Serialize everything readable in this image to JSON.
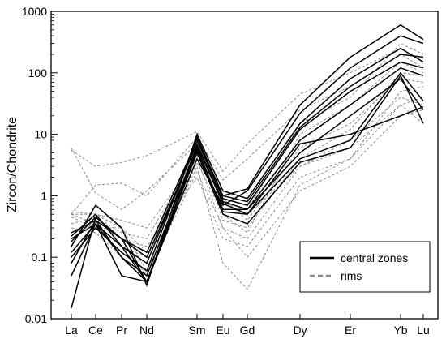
{
  "chart_data": {
    "type": "line",
    "title": "",
    "xlabel": "",
    "ylabel": "Zircon/Chondrite",
    "yscale": "log",
    "ylim": [
      0.01,
      1000
    ],
    "yticks": [
      "0.01",
      "0.1",
      "1",
      "10",
      "100",
      "1000"
    ],
    "categories": [
      "La",
      "Ce",
      "Pr",
      "Nd",
      "Sm",
      "Eu",
      "Gd",
      "Dy",
      "Er",
      "Yb",
      "Lu"
    ],
    "grid": false,
    "legend_position": "bottom-right",
    "legend": [
      {
        "label": "central zones",
        "style": "solid",
        "color": "#000000"
      },
      {
        "label": "rims",
        "style": "dashed",
        "color": "#8a8a8a"
      }
    ],
    "series": [
      {
        "group": "central zones",
        "values": [
          0.015,
          0.45,
          0.2,
          0.04,
          5,
          0.5,
          0.35,
          3.5,
          6,
          90,
          15
        ]
      },
      {
        "group": "central zones",
        "values": [
          0.22,
          0.5,
          0.15,
          0.04,
          6,
          0.55,
          0.5,
          4,
          8,
          100,
          35
        ]
      },
      {
        "group": "central zones",
        "values": [
          0.25,
          0.4,
          0.2,
          0.1,
          7,
          0.8,
          0.6,
          8,
          30,
          120,
          90
        ]
      },
      {
        "group": "central zones",
        "values": [
          0.2,
          0.35,
          0.15,
          0.08,
          8,
          0.9,
          0.7,
          12,
          50,
          150,
          120
        ]
      },
      {
        "group": "central zones",
        "values": [
          0.1,
          0.3,
          0.12,
          0.06,
          9,
          1,
          0.8,
          13,
          60,
          200,
          180
        ]
      },
      {
        "group": "central zones",
        "values": [
          0.15,
          0.7,
          0.3,
          0.035,
          10,
          1.2,
          0.9,
          15,
          80,
          250,
          150
        ]
      },
      {
        "group": "central zones",
        "values": [
          0.08,
          0.4,
          0.1,
          0.04,
          5.5,
          0.6,
          0.6,
          5,
          20,
          80,
          25
        ]
      },
      {
        "group": "central zones",
        "values": [
          0.05,
          0.35,
          0.05,
          0.04,
          4,
          0.7,
          1.2,
          22,
          120,
          400,
          300
        ]
      },
      {
        "group": "central zones",
        "values": [
          0.18,
          0.45,
          0.2,
          0.12,
          8,
          1,
          1.3,
          30,
          180,
          600,
          350
        ]
      },
      {
        "group": "central zones",
        "values": [
          0.12,
          0.35,
          0.1,
          0.05,
          6.5,
          0.75,
          0.5,
          7,
          10,
          20,
          28
        ]
      },
      {
        "group": "rims",
        "values": [
          6,
          1.1,
          0.6,
          1.2,
          7,
          0.8,
          0.5,
          3,
          6,
          30,
          15
        ]
      },
      {
        "group": "rims",
        "values": [
          5.5,
          3,
          3.5,
          4.5,
          11,
          2.5,
          7,
          45,
          100,
          250,
          150
        ]
      },
      {
        "group": "rims",
        "values": [
          0.5,
          1.5,
          1.6,
          1,
          9,
          1.8,
          4,
          25,
          60,
          200,
          120
        ]
      },
      {
        "group": "rims",
        "values": [
          0.55,
          0.5,
          0.4,
          0.3,
          4,
          0.3,
          0.2,
          3,
          8,
          40,
          30
        ]
      },
      {
        "group": "rims",
        "values": [
          0.5,
          0.35,
          0.2,
          0.15,
          2,
          0.2,
          0.15,
          2,
          4,
          30,
          40
        ]
      },
      {
        "group": "rims",
        "values": [
          0.45,
          0.3,
          0.3,
          0.06,
          3,
          0.08,
          0.03,
          1.5,
          4,
          50,
          60
        ]
      },
      {
        "group": "rims",
        "values": [
          0.3,
          0.25,
          0.1,
          0.05,
          2.5,
          0.3,
          0.1,
          1.2,
          3,
          20,
          25
        ]
      },
      {
        "group": "rims",
        "values": [
          0.35,
          0.45,
          0.25,
          0.2,
          5,
          0.9,
          0.4,
          6,
          15,
          80,
          70
        ]
      },
      {
        "group": "rims",
        "values": [
          0.5,
          0.5,
          0.3,
          0.12,
          6,
          0.4,
          0.3,
          4,
          12,
          100,
          90
        ]
      },
      {
        "group": "rims",
        "values": [
          0.2,
          0.4,
          0.2,
          0.05,
          3.5,
          0.5,
          0.25,
          10,
          30,
          150,
          100
        ]
      },
      {
        "group": "rims",
        "values": [
          0.25,
          0.35,
          0.15,
          0.1,
          4.5,
          0.6,
          0.6,
          15,
          40,
          300,
          200
        ]
      }
    ]
  }
}
